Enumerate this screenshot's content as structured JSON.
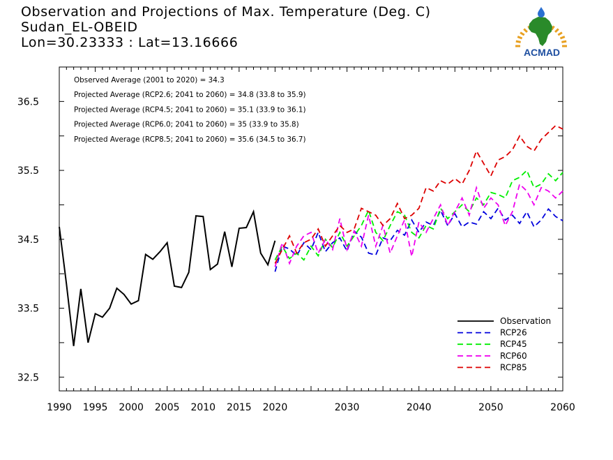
{
  "title_lines": [
    "Observation and Projections of Max. Temperature (Deg. C)",
    "Sudan_EL-OBEID",
    "Lon=30.23333 : Lat=13.16666"
  ],
  "logo": {
    "text": "ACMAD",
    "colors": {
      "africa": "#2a8a2a",
      "rays": "#e8a020",
      "text": "#1e4fa0",
      "drop": "#2a6fd0"
    }
  },
  "annotations": [
    "Observed Average (2001 to 2020) = 34.3",
    "Projected Average (RCP2.6; 2041 to 2060) = 34.8 (33.8 to 35.9)",
    "Projected Average (RCP4.5; 2041 to 2060) = 35.1 (33.9 to 36.1)",
    "Projected Average (RCP6.0; 2041 to 2060) = 35 (33.9 to 35.8)",
    "Projected Average (RCP8.5; 2041 to 2060) = 35.6 (34.5 to 36.7)"
  ],
  "chart_data": {
    "type": "line",
    "xlim": [
      1990,
      2060
    ],
    "ylim": [
      32.3,
      37.0
    ],
    "x_tick_labels": [
      1990,
      1995,
      2000,
      2005,
      2010,
      2015,
      2020,
      2030,
      2040,
      2050,
      2060
    ],
    "y_tick_labels": [
      "32.5",
      "33.5",
      "34.5",
      "35.5",
      "36.5"
    ],
    "legend_position": "bottom-right",
    "series": [
      {
        "name": "Observation",
        "color": "#000000",
        "dash": false,
        "x": [
          1990,
          1991,
          1992,
          1993,
          1994,
          1995,
          1996,
          1997,
          1998,
          1999,
          2000,
          2001,
          2002,
          2003,
          2004,
          2005,
          2006,
          2007,
          2008,
          2009,
          2010,
          2011,
          2012,
          2013,
          2014,
          2015,
          2016,
          2017,
          2018,
          2019,
          2020
        ],
        "y": [
          34.68,
          33.85,
          32.95,
          33.78,
          33.0,
          33.42,
          33.37,
          33.5,
          33.79,
          33.7,
          33.56,
          33.61,
          34.28,
          34.21,
          34.32,
          34.45,
          33.82,
          33.8,
          34.02,
          34.84,
          34.83,
          34.06,
          34.14,
          34.61,
          34.1,
          34.66,
          34.67,
          34.9,
          34.3,
          34.13,
          34.48
        ]
      },
      {
        "name": "RCP26",
        "color": "#0000dd",
        "dash": true,
        "x": [
          2020,
          2021,
          2022,
          2023,
          2024,
          2025,
          2026,
          2027,
          2028,
          2029,
          2030,
          2031,
          2032,
          2033,
          2034,
          2035,
          2036,
          2037,
          2038,
          2039,
          2040,
          2041,
          2042,
          2043,
          2044,
          2045,
          2046,
          2047,
          2048,
          2049,
          2050,
          2051,
          2052,
          2053,
          2054,
          2055,
          2056,
          2057,
          2058,
          2059,
          2060
        ],
        "y": [
          34.03,
          34.4,
          34.36,
          34.26,
          34.45,
          34.35,
          34.6,
          34.32,
          34.45,
          34.52,
          34.33,
          34.62,
          34.53,
          34.3,
          34.27,
          34.52,
          34.48,
          34.63,
          34.56,
          34.78,
          34.6,
          34.75,
          34.7,
          34.92,
          34.7,
          34.87,
          34.68,
          34.75,
          34.72,
          34.9,
          34.8,
          34.95,
          34.78,
          34.85,
          34.73,
          34.9,
          34.68,
          34.78,
          34.94,
          34.83,
          34.77
        ]
      },
      {
        "name": "RCP45",
        "color": "#00ee00",
        "dash": true,
        "x": [
          2020,
          2021,
          2022,
          2023,
          2024,
          2025,
          2026,
          2027,
          2028,
          2029,
          2030,
          2031,
          2032,
          2033,
          2034,
          2035,
          2036,
          2037,
          2038,
          2039,
          2040,
          2041,
          2042,
          2043,
          2044,
          2045,
          2046,
          2047,
          2048,
          2049,
          2050,
          2051,
          2052,
          2053,
          2054,
          2055,
          2056,
          2057,
          2058,
          2059,
          2060
        ],
        "y": [
          34.2,
          34.4,
          34.22,
          34.3,
          34.2,
          34.4,
          34.26,
          34.5,
          34.38,
          34.6,
          34.4,
          34.55,
          34.7,
          34.92,
          34.6,
          34.48,
          34.7,
          34.9,
          34.85,
          34.6,
          34.52,
          34.7,
          34.65,
          34.95,
          34.8,
          34.9,
          35.0,
          34.9,
          35.1,
          35.0,
          35.18,
          35.15,
          35.1,
          35.35,
          35.4,
          35.5,
          35.25,
          35.3,
          35.45,
          35.35,
          35.47
        ]
      },
      {
        "name": "RCP60",
        "color": "#ee00ee",
        "dash": true,
        "x": [
          2020,
          2021,
          2022,
          2023,
          2024,
          2025,
          2026,
          2027,
          2028,
          2029,
          2030,
          2031,
          2032,
          2033,
          2034,
          2035,
          2036,
          2037,
          2038,
          2039,
          2040,
          2041,
          2042,
          2043,
          2044,
          2045,
          2046,
          2047,
          2048,
          2049,
          2050,
          2051,
          2052,
          2053,
          2054,
          2055,
          2056,
          2057,
          2058,
          2059,
          2060
        ],
        "y": [
          34.1,
          34.45,
          34.15,
          34.4,
          34.55,
          34.6,
          34.3,
          34.5,
          34.35,
          34.8,
          34.35,
          34.62,
          34.4,
          34.85,
          34.4,
          34.7,
          34.3,
          34.55,
          34.78,
          34.25,
          34.75,
          34.6,
          34.8,
          35.0,
          34.7,
          34.9,
          35.1,
          34.85,
          35.25,
          34.95,
          35.1,
          35.0,
          34.7,
          34.9,
          35.3,
          35.2,
          35.0,
          35.25,
          35.2,
          35.1,
          35.2
        ]
      },
      {
        "name": "RCP85",
        "color": "#dd0000",
        "dash": true,
        "x": [
          2020,
          2021,
          2022,
          2023,
          2024,
          2025,
          2026,
          2027,
          2028,
          2029,
          2030,
          2031,
          2032,
          2033,
          2034,
          2035,
          2036,
          2037,
          2038,
          2039,
          2040,
          2041,
          2042,
          2043,
          2044,
          2045,
          2046,
          2047,
          2048,
          2049,
          2050,
          2051,
          2052,
          2053,
          2054,
          2055,
          2056,
          2057,
          2058,
          2059,
          2060
        ],
        "y": [
          34.15,
          34.35,
          34.55,
          34.3,
          34.45,
          34.5,
          34.65,
          34.4,
          34.55,
          34.7,
          34.6,
          34.65,
          34.95,
          34.9,
          34.85,
          34.7,
          34.8,
          35.02,
          34.8,
          34.85,
          34.95,
          35.25,
          35.2,
          35.35,
          35.3,
          35.38,
          35.3,
          35.5,
          35.78,
          35.6,
          35.42,
          35.65,
          35.7,
          35.8,
          36.0,
          35.85,
          35.78,
          35.95,
          36.05,
          36.15,
          36.1
        ]
      }
    ]
  }
}
